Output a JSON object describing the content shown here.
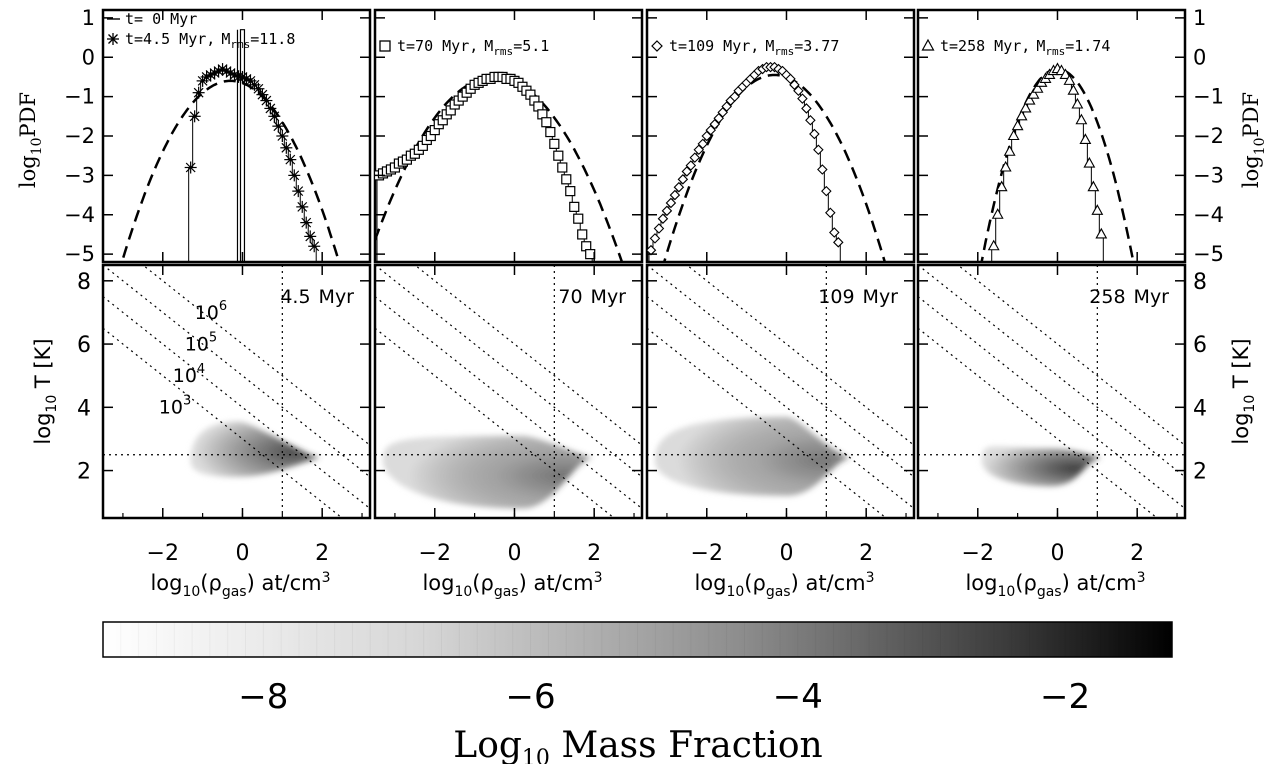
{
  "chart_data": {
    "pdf_panels": [
      {
        "type": "line",
        "ylabel_main": "log",
        "ylabel_sub": "10",
        "ylabel_tail": "PDF",
        "xlim": [
          -3.5,
          3.2
        ],
        "ylim": [
          -5.2,
          1.2
        ],
        "legend": [
          {
            "marker": "line",
            "text": "t=  0 Myr",
            "mrms": ""
          },
          {
            "marker": "asterisk",
            "text": "t=4.5 Myr,",
            "mrms": "11.8"
          }
        ],
        "series": [
          {
            "marker": "none",
            "x": [
              -0.05,
              -0.05,
              0.05,
              0.05
            ],
            "y": [
              -5.2,
              0.7,
              0.7,
              -5.2
            ]
          },
          {
            "marker": "asterisk",
            "x": [
              -1.3,
              -1.2,
              -1.1,
              -1.0,
              -0.9,
              -0.8,
              -0.7,
              -0.6,
              -0.5,
              -0.4,
              -0.3,
              -0.2,
              -0.1,
              0.0,
              0.1,
              0.2,
              0.3,
              0.4,
              0.5,
              0.6,
              0.7,
              0.8,
              0.9,
              1.0,
              1.1,
              1.2,
              1.3,
              1.4,
              1.5,
              1.6,
              1.7,
              1.8
            ],
            "y": [
              -2.8,
              -1.5,
              -0.9,
              -0.6,
              -0.5,
              -0.45,
              -0.4,
              -0.35,
              -0.3,
              -0.35,
              -0.4,
              -0.45,
              -0.5,
              -0.5,
              -0.55,
              -0.6,
              -0.7,
              -0.8,
              -0.95,
              -1.1,
              -1.3,
              -1.5,
              -1.75,
              -2.0,
              -2.3,
              -2.6,
              -3.0,
              -3.4,
              -3.8,
              -4.2,
              -4.55,
              -4.8
            ]
          }
        ],
        "fit": {
          "mu": -0.3,
          "peak": -0.6,
          "k": 0.62
        }
      },
      {
        "type": "line",
        "ylim": [
          -5.2,
          1.2
        ],
        "xlim": [
          -3.5,
          3.2
        ],
        "legend": [
          {
            "marker": "square",
            "text": "t=70 Myr,",
            "mrms": "5.1"
          }
        ],
        "series": [
          {
            "marker": "square",
            "x": [
              -3.4,
              -3.3,
              -3.2,
              -3.1,
              -3.0,
              -2.9,
              -2.8,
              -2.7,
              -2.6,
              -2.5,
              -2.4,
              -2.3,
              -2.2,
              -2.1,
              -2.0,
              -1.9,
              -1.8,
              -1.7,
              -1.6,
              -1.5,
              -1.4,
              -1.3,
              -1.2,
              -1.1,
              -1.0,
              -0.9,
              -0.8,
              -0.7,
              -0.6,
              -0.5,
              -0.4,
              -0.3,
              -0.2,
              -0.1,
              0.0,
              0.1,
              0.2,
              0.3,
              0.4,
              0.5,
              0.6,
              0.7,
              0.8,
              0.9,
              1.0,
              1.1,
              1.2,
              1.3,
              1.4,
              1.5,
              1.6,
              1.7,
              1.8,
              1.9
            ],
            "y": [
              -3.0,
              -2.95,
              -2.9,
              -2.85,
              -2.8,
              -2.7,
              -2.65,
              -2.6,
              -2.5,
              -2.45,
              -2.35,
              -2.25,
              -2.1,
              -2.0,
              -1.85,
              -1.7,
              -1.6,
              -1.45,
              -1.35,
              -1.2,
              -1.1,
              -1.0,
              -0.9,
              -0.8,
              -0.7,
              -0.65,
              -0.6,
              -0.55,
              -0.55,
              -0.5,
              -0.5,
              -0.5,
              -0.55,
              -0.55,
              -0.6,
              -0.65,
              -0.75,
              -0.85,
              -0.95,
              -1.1,
              -1.25,
              -1.45,
              -1.65,
              -1.9,
              -2.2,
              -2.5,
              -2.8,
              -3.1,
              -3.4,
              -3.8,
              -4.1,
              -4.5,
              -4.8,
              -5.0
            ]
          }
        ],
        "fit": {
          "mu": -0.5,
          "peak": -0.5,
          "k": 0.46
        }
      },
      {
        "type": "line",
        "ylim": [
          -5.2,
          1.2
        ],
        "xlim": [
          -3.5,
          3.2
        ],
        "legend": [
          {
            "marker": "diamond",
            "text": "t=109 Myr,",
            "mrms": "3.77"
          }
        ],
        "series": [
          {
            "marker": "diamond",
            "x": [
              -3.4,
              -3.3,
              -3.2,
              -3.1,
              -3.0,
              -2.9,
              -2.8,
              -2.7,
              -2.6,
              -2.5,
              -2.4,
              -2.3,
              -2.2,
              -2.1,
              -2.0,
              -1.9,
              -1.8,
              -1.7,
              -1.6,
              -1.5,
              -1.4,
              -1.3,
              -1.2,
              -1.1,
              -1.0,
              -0.9,
              -0.8,
              -0.7,
              -0.6,
              -0.5,
              -0.4,
              -0.3,
              -0.2,
              -0.1,
              0.0,
              0.1,
              0.2,
              0.3,
              0.4,
              0.5,
              0.6,
              0.7,
              0.8,
              0.9,
              1.0,
              1.1,
              1.2,
              1.3
            ],
            "y": [
              -4.9,
              -4.6,
              -4.35,
              -4.1,
              -3.9,
              -3.7,
              -3.5,
              -3.3,
              -3.1,
              -2.9,
              -2.75,
              -2.55,
              -2.35,
              -2.2,
              -2.0,
              -1.85,
              -1.7,
              -1.55,
              -1.4,
              -1.25,
              -1.1,
              -1.0,
              -0.85,
              -0.75,
              -0.65,
              -0.55,
              -0.45,
              -0.35,
              -0.3,
              -0.25,
              -0.25,
              -0.25,
              -0.3,
              -0.35,
              -0.45,
              -0.55,
              -0.7,
              -0.85,
              -1.05,
              -1.3,
              -1.6,
              -1.95,
              -2.35,
              -2.85,
              -3.4,
              -3.95,
              -4.45,
              -4.7
            ]
          }
        ],
        "fit": {
          "mu": -0.3,
          "peak": -0.45,
          "k": 0.62
        }
      },
      {
        "type": "line",
        "ylabel_main": "log",
        "ylabel_sub": "10",
        "ylabel_tail": "PDF",
        "ylim": [
          -5.2,
          1.2
        ],
        "xlim": [
          -3.5,
          3.2
        ],
        "legend": [
          {
            "marker": "triangle",
            "text": "t=258 Myr,",
            "mrms": "1.74"
          }
        ],
        "series": [
          {
            "marker": "triangle",
            "x": [
              -1.6,
              -1.5,
              -1.4,
              -1.3,
              -1.2,
              -1.1,
              -1.0,
              -0.9,
              -0.8,
              -0.7,
              -0.6,
              -0.5,
              -0.4,
              -0.3,
              -0.2,
              -0.1,
              0.0,
              0.1,
              0.2,
              0.3,
              0.4,
              0.5,
              0.6,
              0.7,
              0.8,
              0.9,
              1.0,
              1.1
            ],
            "y": [
              -4.8,
              -4.0,
              -3.3,
              -2.8,
              -2.4,
              -2.0,
              -1.75,
              -1.5,
              -1.3,
              -1.1,
              -0.95,
              -0.8,
              -0.65,
              -0.55,
              -0.45,
              -0.35,
              -0.3,
              -0.35,
              -0.45,
              -0.6,
              -0.85,
              -1.2,
              -1.6,
              -2.1,
              -2.7,
              -3.3,
              -3.9,
              -4.5
            ]
          }
        ],
        "fit": {
          "mu": 0.0,
          "peak": -0.3,
          "k": 1.35
        }
      }
    ],
    "phase_panels": [
      {
        "label": "4.5",
        "unit": "Myr",
        "blob": {
          "xmin": -1.3,
          "xmax": 1.95,
          "ymin": 1.8,
          "ymax": 3.55,
          "apex": 1.9,
          "core": -0.1,
          "dark": 0.78
        }
      },
      {
        "label": "70",
        "unit": "Myr",
        "blob": {
          "xmin": -3.3,
          "xmax": 1.95,
          "ymin": 0.8,
          "ymax": 3.1,
          "apex": 1.9,
          "core": 0.2,
          "dark": 0.62
        }
      },
      {
        "label": "109",
        "unit": "Myr",
        "blob": {
          "xmin": -3.3,
          "xmax": 1.6,
          "ymin": 1.2,
          "ymax": 3.7,
          "apex": 1.5,
          "core": 0.0,
          "dark": 0.6
        }
      },
      {
        "label": "258",
        "unit": "Myr",
        "blob": {
          "xmin": -1.9,
          "xmax": 1.1,
          "ymin": 1.5,
          "ymax": 2.7,
          "apex": 1.0,
          "core": -0.2,
          "dark": 0.85
        }
      }
    ],
    "phase_axes": {
      "xlim": [
        -3.5,
        3.2
      ],
      "ylim": [
        0.5,
        8.5
      ],
      "xticks": [
        -2,
        0,
        2
      ],
      "yticks": [
        2,
        4,
        6,
        8
      ],
      "xlabel_main": "log",
      "xlabel_sub": "10",
      "xlabel_mid": "(ρ",
      "xlabel_gas": "gas",
      "xlabel_tail": ") at/cm",
      "xlabel_pow": "3",
      "ylabel_main": "log",
      "ylabel_sub": "10",
      "ylabel_tail": " T [K]",
      "hline_y": 2.5,
      "vline_x": 1.0,
      "isobar_offsets": [
        3,
        4,
        5,
        6
      ],
      "isobar_labels": [
        {
          "base": "10",
          "exp": "6"
        },
        {
          "base": "10",
          "exp": "5"
        },
        {
          "base": "10",
          "exp": "4"
        },
        {
          "base": "10",
          "exp": "3"
        }
      ]
    },
    "pdf_yticks": [
      1,
      0,
      -1,
      -2,
      -3,
      -4,
      -5
    ],
    "mrms_label": "M",
    "mrms_sub": "rms",
    "mrms_eq": "=",
    "colorbar": {
      "ticks": [
        -8,
        -6,
        -4,
        -2
      ],
      "range": [
        -9.2,
        -1.2
      ],
      "label_main": "Log",
      "label_sub": "10",
      "label_tail": " Mass Fraction"
    }
  }
}
